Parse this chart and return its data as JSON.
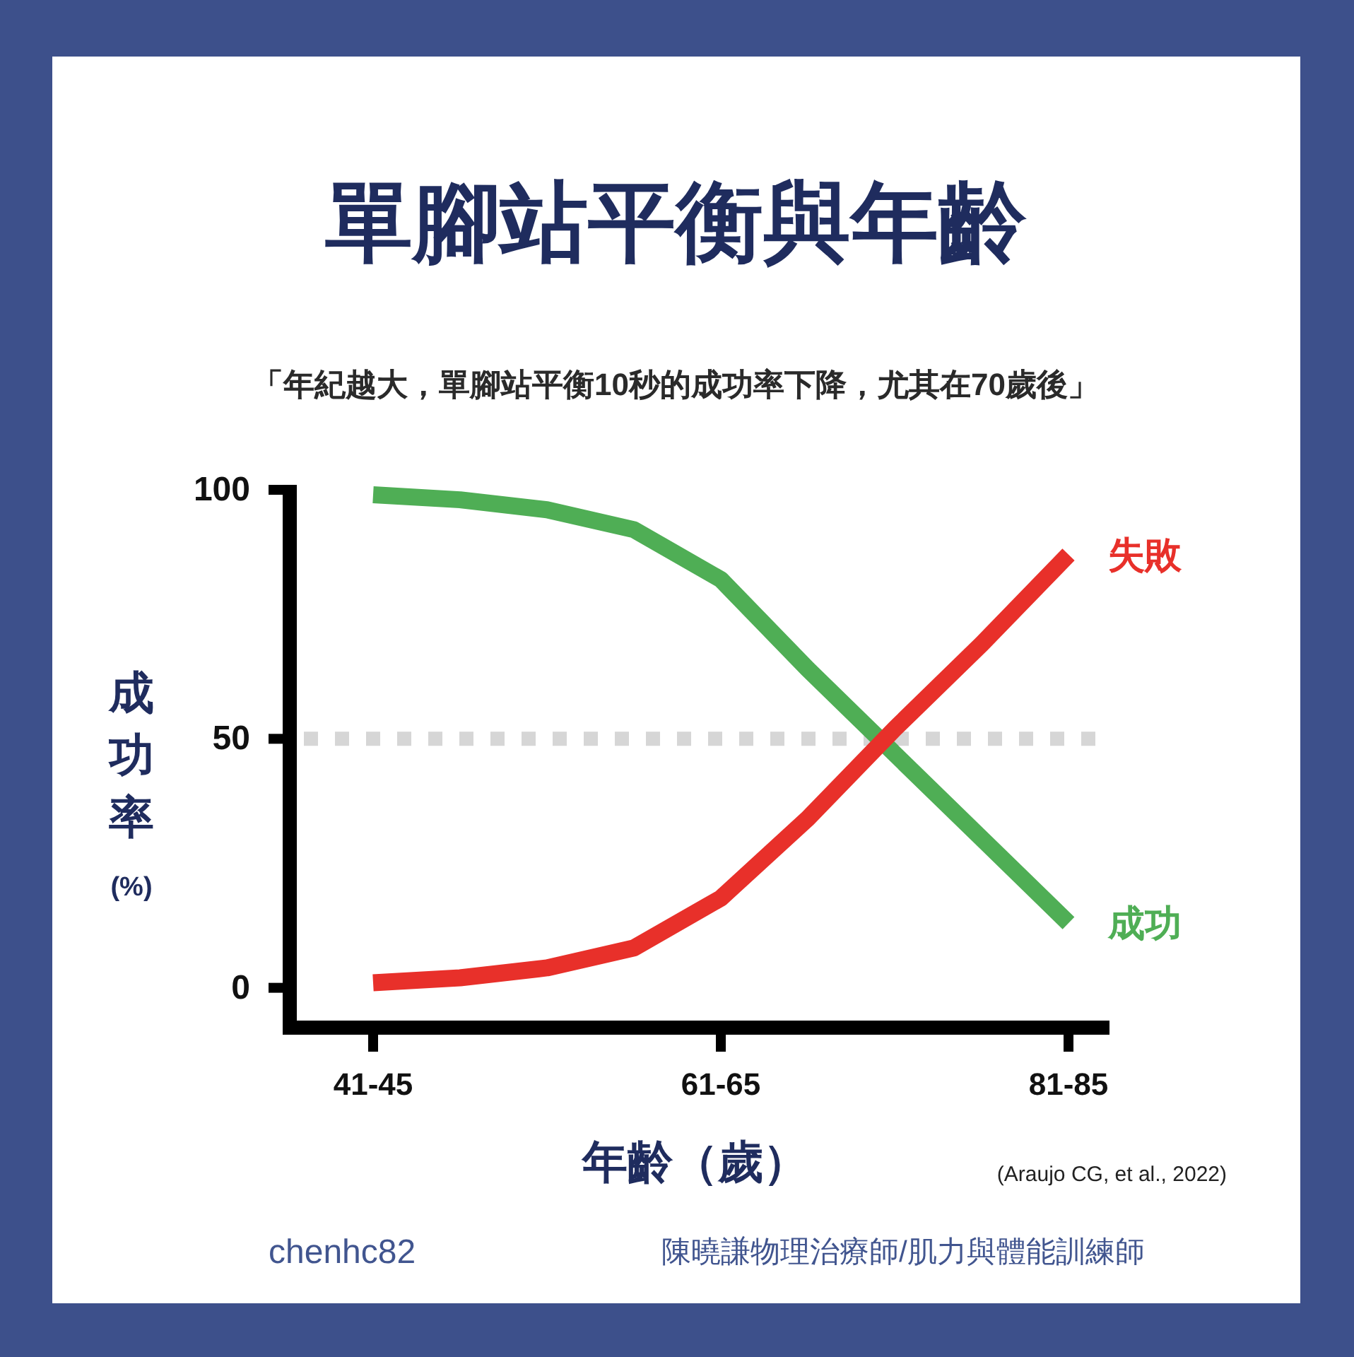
{
  "chart_data": {
    "type": "line",
    "title": "單腳站平衡與年齡",
    "subtitle": "「年紀越大，單腳站平衡10秒的成功率下降，尤其在70歲後」",
    "xlabel": "年齡（歲）",
    "ylabel": "成功率\n(%)",
    "categories": [
      "41-45",
      null,
      null,
      null,
      "61-65",
      null,
      null,
      null,
      "81-85"
    ],
    "series": [
      {
        "name": "成功",
        "color": "#4fae55",
        "values": [
          99,
          98,
          96,
          92,
          82,
          64,
          47,
          30,
          13
        ]
      },
      {
        "name": "失敗",
        "color": "#e8302a",
        "values": [
          1,
          2,
          4,
          8,
          18,
          34,
          52,
          69,
          87
        ]
      }
    ],
    "ylim": [
      -8,
      101
    ],
    "yticks": [
      0,
      50,
      100
    ],
    "ref_lines": [
      {
        "axis": "y",
        "value": 50,
        "color": "#d6d6d6",
        "line_style": "dotted"
      }
    ],
    "annotations": [
      "(Araujo CG, et al., 2022)",
      "chenhc82",
      "陳曉謙物理治療師/肌力與體能訓練師"
    ]
  }
}
